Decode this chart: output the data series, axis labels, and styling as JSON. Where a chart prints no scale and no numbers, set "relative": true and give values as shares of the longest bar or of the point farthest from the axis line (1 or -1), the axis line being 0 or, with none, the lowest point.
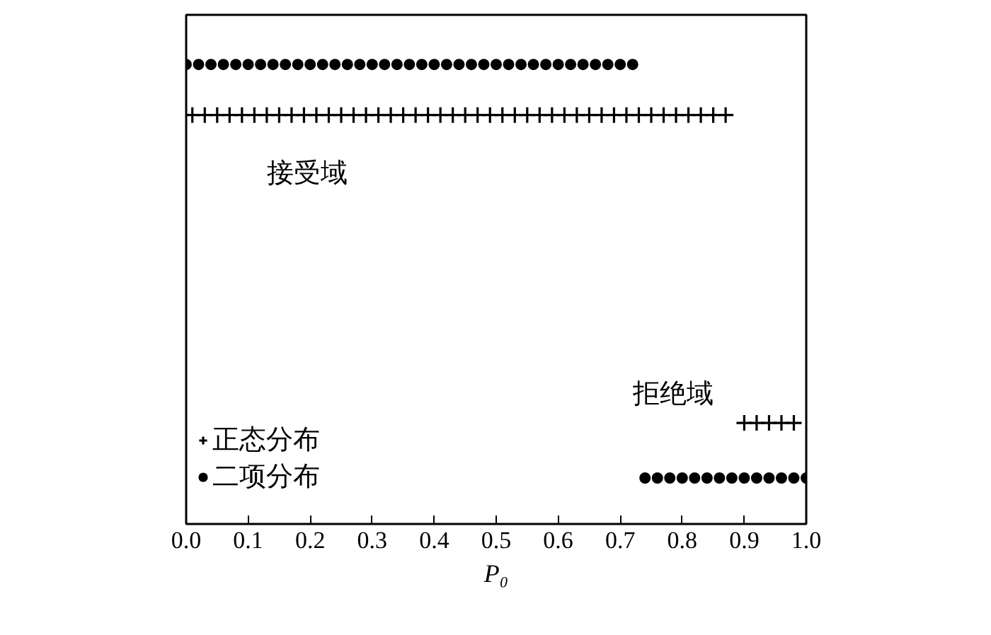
{
  "chart_data": {
    "type": "scatter",
    "relative": true,
    "xlabel": "P₀",
    "xlim": [
      0,
      1
    ],
    "xticks": [
      {
        "value": 0,
        "label": "0.0"
      },
      0.1,
      0.2,
      0.3,
      0.4,
      0.5,
      0.6,
      0.7,
      0.8,
      0.9,
      {
        "value": 1,
        "label": "1.0"
      }
    ],
    "grid": false,
    "legend": "bottom left",
    "annotations": [
      "接受域",
      "拒绝域"
    ],
    "series": [
      {
        "name": "正态分布",
        "color": "#000000",
        "marker": "cross",
        "x": [
          0.01,
          0.03,
          0.05,
          0.07,
          0.09,
          0.11,
          0.13,
          0.15,
          0.17,
          0.19,
          0.21,
          0.23,
          0.25,
          0.27,
          0.29,
          0.31,
          0.33,
          0.35,
          0.37,
          0.39,
          0.41,
          0.43,
          0.45,
          0.47,
          0.49,
          0.51,
          0.53,
          0.55,
          0.57,
          0.59,
          0.61,
          0.63,
          0.65,
          0.67,
          0.69,
          0.71,
          0.73,
          0.75,
          0.77,
          0.79,
          0.81,
          0.83,
          0.85,
          0.87,
          0.9,
          0.92,
          0.94,
          0.96,
          0.98
        ],
        "values": [
          0.89,
          0.89,
          0.89,
          0.89,
          0.89,
          0.89,
          0.89,
          0.89,
          0.89,
          0.89,
          0.89,
          0.89,
          0.89,
          0.89,
          0.89,
          0.89,
          0.89,
          0.89,
          0.89,
          0.89,
          0.89,
          0.89,
          0.89,
          0.89,
          0.89,
          0.89,
          0.89,
          0.89,
          0.89,
          0.89,
          0.89,
          0.89,
          0.89,
          0.89,
          0.89,
          0.89,
          0.89,
          0.89,
          0.89,
          0.89,
          0.89,
          0.89,
          0.89,
          0.89,
          0.22,
          0.22,
          0.22,
          0.22,
          0.22
        ]
      },
      {
        "name": "二项分布",
        "color": "#000000",
        "marker": "circle",
        "x": [
          0,
          0.02,
          0.04,
          0.06,
          0.08,
          0.1,
          0.12,
          0.14,
          0.16,
          0.18,
          0.2,
          0.22,
          0.24,
          0.26,
          0.28,
          0.3,
          0.32,
          0.34,
          0.36,
          0.38,
          0.4,
          0.42,
          0.44,
          0.46,
          0.48,
          0.5,
          0.52,
          0.54,
          0.56,
          0.58,
          0.6,
          0.62,
          0.64,
          0.66,
          0.68,
          0.7,
          0.72,
          0.74,
          0.76,
          0.78,
          0.8,
          0.82,
          0.84,
          0.86,
          0.88,
          0.9,
          0.92,
          0.94,
          0.96,
          0.98,
          1.0
        ],
        "values": [
          1,
          1,
          1,
          1,
          1,
          1,
          1,
          1,
          1,
          1,
          1,
          1,
          1,
          1,
          1,
          1,
          1,
          1,
          1,
          1,
          1,
          1,
          1,
          1,
          1,
          1,
          1,
          1,
          1,
          1,
          1,
          1,
          1,
          1,
          1,
          1,
          1,
          0.1,
          0.1,
          0.1,
          0.1,
          0.1,
          0.1,
          0.1,
          0.1,
          0.1,
          0.1,
          0.1,
          0.1,
          0.1,
          0.1
        ]
      }
    ]
  }
}
